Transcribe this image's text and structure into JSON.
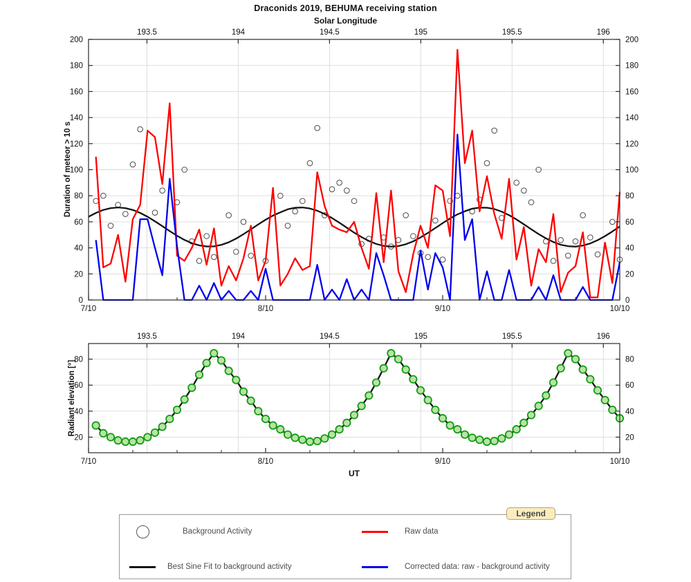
{
  "page": {
    "title": "Draconids 2019, BEHUMA receiving station",
    "subtitle": "Solar Longitude"
  },
  "colors": {
    "raw": "#ff0000",
    "corrected": "#0000ee",
    "sine_fit": "#141414",
    "background_circle": "#4a4a4a",
    "marker_fill": "#b9e3a6",
    "marker_edge": "#129c12",
    "grid": "#d9d9d9",
    "axis": "#2a2a2a",
    "legend_tab_bg": "#f9edc0",
    "legend_tab_border": "#b9a269"
  },
  "legend": {
    "tab_label": "Legend",
    "items": [
      {
        "symbol": "open-circle",
        "color": "#555555",
        "label": "Background Activity"
      },
      {
        "symbol": "line",
        "color": "#ff0000",
        "label": "Raw data"
      },
      {
        "symbol": "line",
        "color": "#141414",
        "label": "Best Sine Fit to background activity"
      },
      {
        "symbol": "line",
        "color": "#0000ee",
        "label": "Corrected data: raw - background activity"
      }
    ]
  },
  "chart_data": [
    {
      "type": "line",
      "title": "Draconids 2019, BEHUMA receiving station",
      "x_axis": {
        "label": "UT",
        "xlim": [
          0,
          72
        ],
        "unit": "hours from 7/10/2019 00:00 UT",
        "ticks": [
          {
            "h": 0,
            "label": "7/10"
          },
          {
            "h": 24,
            "label": "8/10"
          },
          {
            "h": 48,
            "label": "9/10"
          },
          {
            "h": 72,
            "label": "10/10"
          }
        ],
        "minor_ticks_h": [
          6,
          12,
          18,
          30,
          36,
          42,
          54,
          60,
          66
        ]
      },
      "x2_axis": {
        "label": "Solar Longitude",
        "domain": [
          193.18,
          196.09
        ],
        "ticks": [
          193.5,
          194,
          194.5,
          195,
          195.5,
          196
        ]
      },
      "y_axis": {
        "label": "Duration of meteor > 10 s",
        "ylim": [
          0,
          200
        ],
        "ticks": [
          0,
          20,
          40,
          60,
          80,
          100,
          120,
          140,
          160,
          180,
          200
        ],
        "grid": [
          20,
          40,
          60,
          80,
          100,
          120,
          140,
          160,
          180
        ]
      },
      "series": [
        {
          "name": "Background Activity",
          "style": "open-circle",
          "color": "#4a4a4a",
          "points": [
            [
              1,
              76
            ],
            [
              2,
              80
            ],
            [
              3,
              57
            ],
            [
              4,
              73
            ],
            [
              5,
              66
            ],
            [
              6,
              104
            ],
            [
              7,
              131
            ],
            [
              9,
              67
            ],
            [
              10,
              84
            ],
            [
              12,
              75
            ],
            [
              13,
              100
            ],
            [
              14,
              45
            ],
            [
              15,
              30
            ],
            [
              16,
              49
            ],
            [
              17,
              33
            ],
            [
              19,
              65
            ],
            [
              20,
              37
            ],
            [
              21,
              60
            ],
            [
              22,
              34
            ],
            [
              24,
              30
            ],
            [
              26,
              80
            ],
            [
              27,
              57
            ],
            [
              28,
              68
            ],
            [
              29,
              76
            ],
            [
              30,
              105
            ],
            [
              31,
              132
            ],
            [
              32,
              65
            ],
            [
              33,
              85
            ],
            [
              34,
              90
            ],
            [
              35,
              84
            ],
            [
              36,
              76
            ],
            [
              37,
              43
            ],
            [
              38,
              47
            ],
            [
              40,
              48
            ],
            [
              41,
              41
            ],
            [
              42,
              46
            ],
            [
              43,
              65
            ],
            [
              44,
              49
            ],
            [
              45,
              36
            ],
            [
              46,
              33
            ],
            [
              47,
              61
            ],
            [
              48,
              31
            ],
            [
              49,
              76
            ],
            [
              50,
              80
            ],
            [
              52,
              68
            ],
            [
              53,
              77
            ],
            [
              54,
              105
            ],
            [
              55,
              130
            ],
            [
              56,
              63
            ],
            [
              58,
              90
            ],
            [
              59,
              84
            ],
            [
              60,
              75
            ],
            [
              61,
              100
            ],
            [
              62,
              45
            ],
            [
              63,
              30
            ],
            [
              64,
              46
            ],
            [
              65,
              34
            ],
            [
              66,
              45
            ],
            [
              67,
              65
            ],
            [
              68,
              48
            ],
            [
              69,
              35
            ],
            [
              71,
              60
            ],
            [
              72,
              31
            ]
          ]
        },
        {
          "name": "Best Sine Fit to background activity",
          "style": "line",
          "color": "#141414",
          "start_h": 0,
          "step_h": 1,
          "fit": {
            "mean": 56,
            "amplitude": 15,
            "period_h": 24.7,
            "phase_max_h": 4
          },
          "values": [
            63.9,
            66.8,
            69.1,
            70.5,
            71,
            70.5,
            69.1,
            66.8,
            63.9,
            60.4,
            56.7,
            52.9,
            49.3,
            46.1,
            43.6,
            41.9,
            41.1,
            41.2,
            42.3,
            44.3,
            47.1,
            50.5,
            54.2,
            58,
            61.6,
            64.8,
            67.3,
            69.6,
            70.8,
            71,
            70.2,
            68.5,
            66,
            62.9,
            59.3,
            55.5,
            51.7,
            48.3,
            45.3,
            43,
            41.5,
            41,
            41.4,
            42.8,
            45,
            48,
            51.5,
            55.2,
            59,
            62.6,
            65.7,
            68.1,
            70.1,
            70.9,
            70.8,
            69.8,
            67.8,
            65.1,
            61.8,
            58.1,
            54.3,
            50.6,
            47.3,
            44.5,
            42.4,
            41.3,
            41,
            41.8,
            43.4,
            45.9,
            49,
            52.6,
            56.4
          ]
        },
        {
          "name": "Raw data",
          "style": "line",
          "color": "#ff0000",
          "start_h": 1,
          "step_h": 1,
          "values": [
            110,
            25,
            28,
            50,
            14,
            62,
            73,
            130,
            125,
            89,
            151,
            34,
            30,
            40,
            54,
            27,
            55,
            11,
            26,
            15,
            32,
            57,
            15,
            30,
            86,
            11,
            20,
            32,
            23,
            26,
            98,
            72,
            57,
            54,
            52,
            60,
            40,
            24,
            82,
            29,
            84,
            22,
            6,
            35,
            57,
            40,
            88,
            84,
            49,
            192,
            105,
            130,
            68,
            95,
            66,
            47,
            93,
            31,
            56,
            11,
            39,
            29,
            66,
            6,
            21,
            26,
            52,
            2,
            2,
            44,
            13,
            83
          ]
        },
        {
          "name": "Corrected data: raw - background activity",
          "style": "line",
          "color": "#0000ee",
          "start_h": 1,
          "step_h": 1,
          "values": [
            46,
            0,
            0,
            0,
            0,
            0,
            62,
            62,
            40,
            19,
            93,
            41,
            0,
            0,
            11,
            0,
            13,
            0,
            7,
            0,
            0,
            7,
            0,
            24,
            0,
            0,
            0,
            0,
            0,
            0,
            27,
            0,
            8,
            0,
            16,
            0,
            8,
            0,
            36,
            19,
            0,
            0,
            0,
            0,
            38,
            8,
            36,
            25,
            0,
            127,
            46,
            62,
            0,
            22,
            0,
            0,
            23,
            0,
            0,
            0,
            10,
            0,
            19,
            0,
            0,
            0,
            10,
            0,
            0,
            0,
            0,
            29
          ]
        }
      ]
    },
    {
      "type": "line",
      "title": "",
      "x_axis": {
        "label": "UT",
        "xlim": [
          0,
          72
        ],
        "ticks": [
          {
            "h": 0,
            "label": "7/10"
          },
          {
            "h": 24,
            "label": "8/10"
          },
          {
            "h": 48,
            "label": "9/10"
          },
          {
            "h": 72,
            "label": "10/10"
          }
        ],
        "minor_ticks_h": [
          6,
          12,
          18,
          30,
          36,
          42,
          54,
          60,
          66
        ]
      },
      "x2_axis": {
        "label": "",
        "domain": [
          193.18,
          196.09
        ],
        "ticks": [
          193.5,
          194,
          194.5,
          195,
          195.5,
          196
        ]
      },
      "y_axis": {
        "label": "Radiant elevation [°]",
        "ylim": [
          8,
          92
        ],
        "ticks": [
          20,
          40,
          60,
          80
        ],
        "grid": [
          20,
          40,
          60,
          80
        ]
      },
      "series": [
        {
          "name": "Radiant elevation",
          "style": "line+marker",
          "line_color": "#141414",
          "marker_fill": "#b9e3a6",
          "marker_edge": "#129c12",
          "start_h": 1,
          "step_h": 1,
          "values": [
            29,
            23,
            20,
            17.5,
            16.5,
            16.5,
            17.5,
            20,
            23.5,
            28,
            34,
            41,
            49,
            58,
            68,
            77,
            84.5,
            79,
            71,
            64,
            55,
            48,
            40,
            34,
            29,
            26,
            22,
            19.5,
            18,
            16.5,
            17,
            19,
            22,
            26,
            31,
            37,
            44,
            52,
            62,
            73,
            84.5,
            80,
            72,
            64.5,
            56,
            48.5,
            41,
            34.5,
            29,
            26,
            22,
            19.5,
            18,
            16.5,
            17,
            19,
            22,
            26,
            31,
            37,
            44,
            52,
            62,
            73,
            84.5,
            80,
            72,
            64.5,
            56,
            48.5,
            41,
            34.5
          ]
        }
      ]
    }
  ]
}
